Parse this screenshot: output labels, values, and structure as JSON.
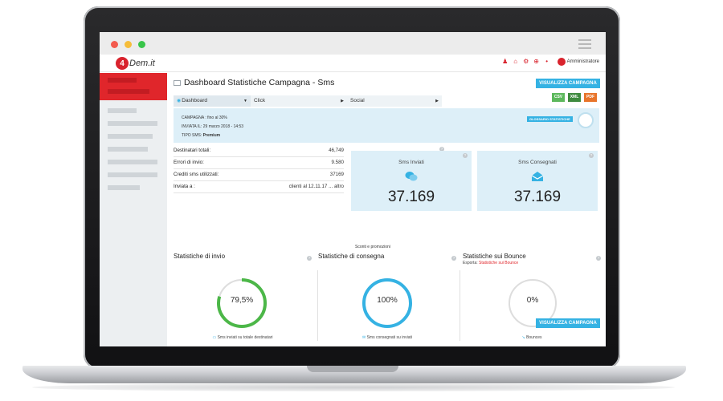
{
  "header": {
    "logo_badge": "4",
    "logo_text": "Dem.it",
    "user_label": "Amministratore"
  },
  "page": {
    "title": "Dashboard Statistiche Campagna - Sms",
    "primary_button": "VISUALIZZA CAMPAGNA",
    "export_label": "Esporta:",
    "export_buttons": [
      "CSV",
      "XML",
      "PDF"
    ]
  },
  "tabs": [
    "Dashboard",
    "Click",
    "Social"
  ],
  "campaign": {
    "name": "CAMPAGNA : fino al 30%",
    "sent": "INVIATA IL: 29 marzo 2018 - 14:53",
    "type_label": "TIPO SMS:",
    "type_value": "Premium",
    "glossary_button": "GLOSSARIO STATISTICHE"
  },
  "summary": [
    {
      "label": "Destinatari totali:",
      "value": "46,749"
    },
    {
      "label": "Errori di invio:",
      "value": "9.580"
    },
    {
      "label": "Crediti sms utilizzati:",
      "value": "37169"
    },
    {
      "label": "Inviata a :",
      "value": "clienti al 12.11.17 ... altro"
    }
  ],
  "cards": [
    {
      "title": "Sms Inviati",
      "value": "37.169",
      "icon": "chat-bubbles-icon"
    },
    {
      "title": "Sms Consegnati",
      "value": "37.169",
      "icon": "envelope-open-icon"
    }
  ],
  "promo_label": "Sconti e promozioni",
  "panels": [
    {
      "title": "Statistiche di invio",
      "value": "79,5%",
      "percent": 79.5,
      "color": "#4cb748",
      "footer": "Sms inviati su totale destinatari"
    },
    {
      "title": "Statistiche di consegna",
      "value": "100%",
      "percent": 100,
      "color": "#35b2e3",
      "footer": "Sms consegnati su inviati"
    },
    {
      "title": "Statistiche sui Bounce",
      "value": "0%",
      "percent": 0,
      "color": "#cccccc",
      "footer": "Bounces",
      "export_prefix": "Esporta:",
      "export_link": "Statistiche sui Bounce"
    }
  ],
  "colors": {
    "brand_red": "#e0262b",
    "accent_blue": "#35b2e3",
    "panel_bg": "#ddeff8"
  }
}
